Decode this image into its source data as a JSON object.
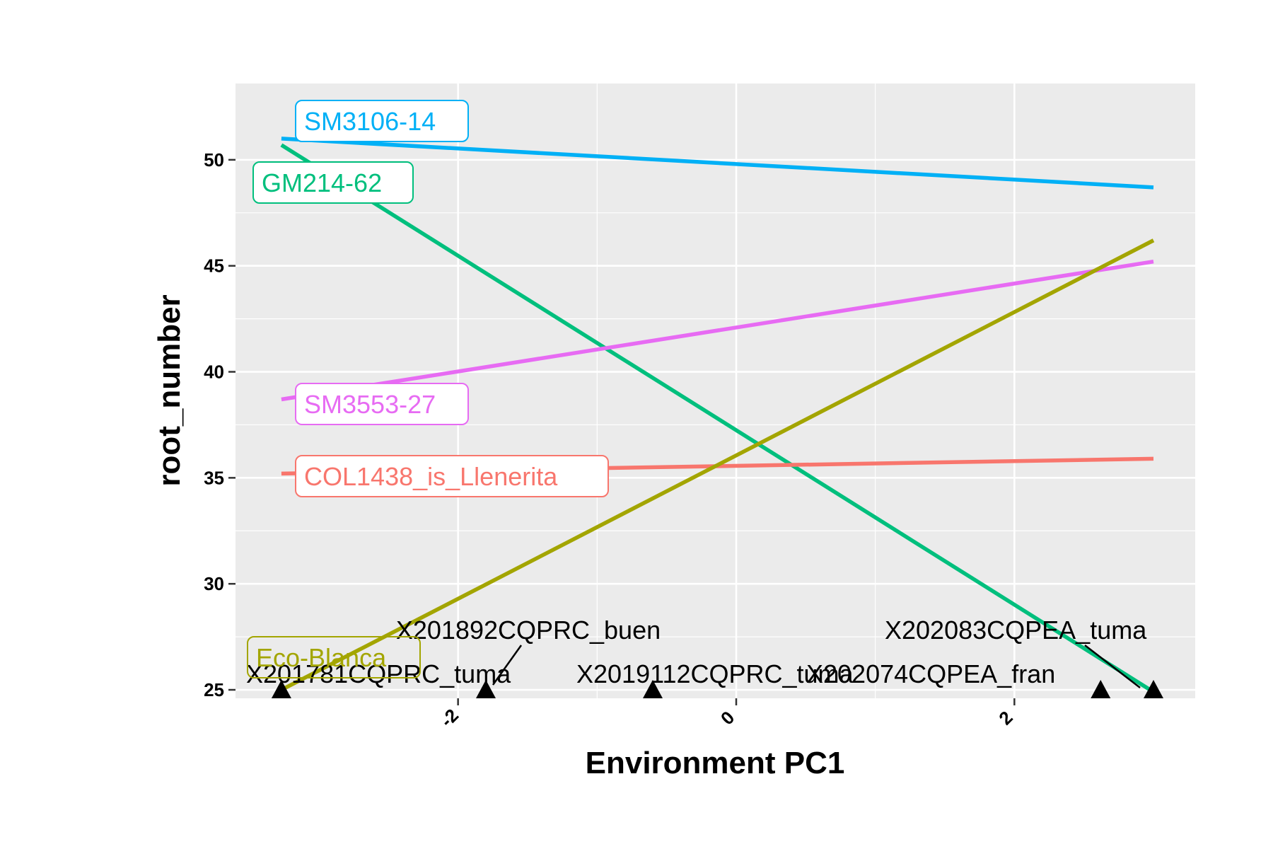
{
  "chart_data": {
    "type": "line",
    "title": "",
    "xlabel": "Environment PC1",
    "ylabel": "root_number",
    "xlim": [
      -3.6,
      3.3
    ],
    "ylim": [
      24.6,
      53.6
    ],
    "x_ticks": [
      -2,
      0,
      2
    ],
    "x_tick_labels": [
      "-2",
      "0",
      "2"
    ],
    "y_ticks": [
      25,
      30,
      35,
      40,
      45,
      50
    ],
    "y_tick_labels": [
      "25",
      "30",
      "35",
      "40",
      "45",
      "50"
    ],
    "grid": true,
    "legend": "none",
    "series": [
      {
        "name": "SM3106-14",
        "color": "#00B0F6",
        "x": [
          -3.27,
          3.0
        ],
        "y": [
          51.0,
          48.7
        ]
      },
      {
        "name": "GM214-62",
        "color": "#00BF7D",
        "x": [
          -3.27,
          3.0
        ],
        "y": [
          50.7,
          24.9
        ]
      },
      {
        "name": "SM3553-27",
        "color": "#E76BF3",
        "x": [
          -3.27,
          3.0
        ],
        "y": [
          38.7,
          45.2
        ]
      },
      {
        "name": "COL1438_is_Llenerita",
        "color": "#F8766D",
        "x": [
          -3.27,
          3.0
        ],
        "y": [
          35.2,
          35.9
        ]
      },
      {
        "name": "Eco-Blanca",
        "color": "#A3A500",
        "x": [
          -3.27,
          3.0
        ],
        "y": [
          25.0,
          46.2
        ]
      }
    ],
    "environments": [
      {
        "name": "X201781CQPRC_tuma",
        "x": -3.27
      },
      {
        "name": "X201892CQPRC_buen",
        "x": -1.8
      },
      {
        "name": "X2019112CQPRC_tuma",
        "x": -0.6
      },
      {
        "name": "X202074CQPEA_fran",
        "x": 2.62
      },
      {
        "name": "X202083CQPEA_tuma",
        "x": 3.0
      }
    ]
  }
}
